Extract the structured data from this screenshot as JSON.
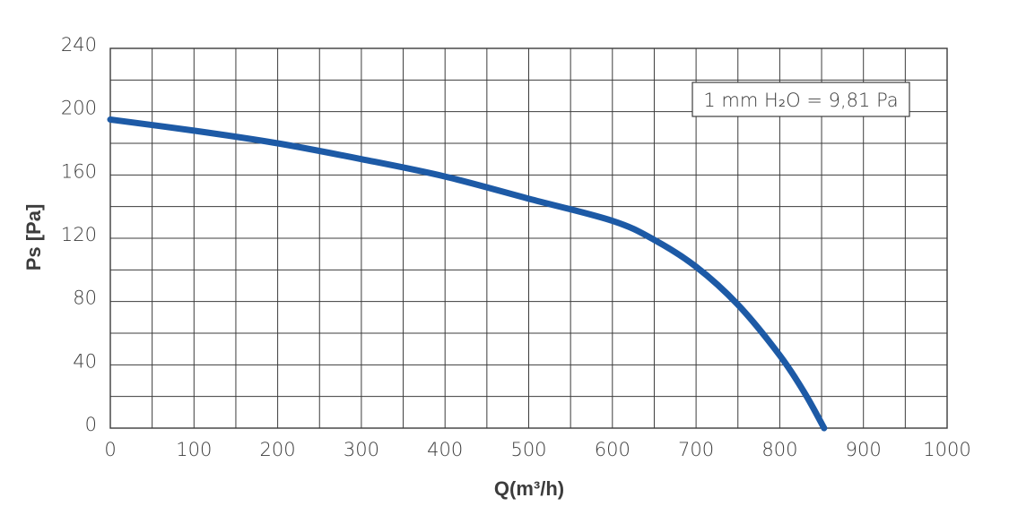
{
  "chart_data": {
    "type": "line",
    "title": "",
    "xlabel": "Q(m³/h)",
    "ylabel": "Ps [Pa]",
    "xlim": [
      0,
      1000
    ],
    "ylim": [
      0,
      240
    ],
    "x_ticks": [
      0,
      100,
      200,
      300,
      400,
      500,
      600,
      700,
      800,
      900,
      1000
    ],
    "y_ticks": [
      0,
      40,
      80,
      120,
      160,
      200,
      240
    ],
    "x_minor_step": 50,
    "y_minor_step": 20,
    "grid": true,
    "annotation": {
      "text": "1 mm H₂O = 9,81 Pa",
      "position": "top-right"
    },
    "series": [
      {
        "color": "#1d5aa6",
        "points": [
          [
            0,
            195
          ],
          [
            100,
            188
          ],
          [
            200,
            180
          ],
          [
            300,
            170
          ],
          [
            400,
            159
          ],
          [
            500,
            145
          ],
          [
            600,
            131
          ],
          [
            650,
            119
          ],
          [
            700,
            102
          ],
          [
            750,
            78
          ],
          [
            800,
            46
          ],
          [
            830,
            22
          ],
          [
            853,
            0
          ]
        ]
      }
    ]
  }
}
